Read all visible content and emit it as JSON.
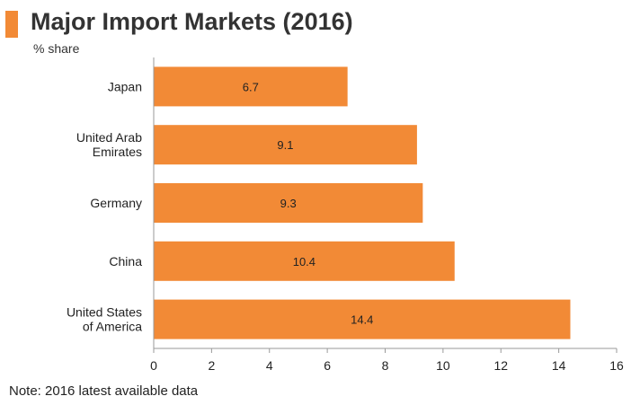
{
  "header": {
    "title": "Major Import Markets (2016)",
    "subtitle": "% share"
  },
  "footer": {
    "note": "Note: 2016 latest available data"
  },
  "colors": {
    "accent": "#f28a36",
    "bar": "#f28a36",
    "axis": "#9a9a9a"
  },
  "chart_data": {
    "type": "bar",
    "orientation": "horizontal",
    "title": "Major Import Markets (2016)",
    "subtitle": "% share",
    "categories": [
      [
        "Japan"
      ],
      [
        "United Arab",
        "Emirates"
      ],
      [
        "Germany"
      ],
      [
        "China"
      ],
      [
        "United States",
        "of America"
      ]
    ],
    "values": [
      6.7,
      9.1,
      9.3,
      10.4,
      14.4
    ],
    "value_labels": [
      "6.7",
      "9.1",
      "9.3",
      "10.4",
      "14.4"
    ],
    "xlim": [
      0,
      16
    ],
    "xticks": [
      0,
      2,
      4,
      6,
      8,
      10,
      12,
      14,
      16
    ],
    "grid": false,
    "legend": "none"
  }
}
